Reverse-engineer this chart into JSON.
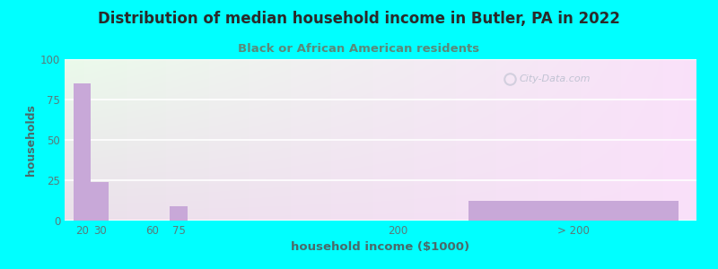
{
  "title": "Distribution of median household income in Butler, PA in 2022",
  "subtitle": "Black or African American residents",
  "xlabel": "household income ($1000)",
  "ylabel": "households",
  "background_color": "#00FFFF",
  "bar_color": "#c8a8d8",
  "title_color": "#2a2a2a",
  "subtitle_color": "#5a8a7a",
  "axis_label_color": "#4a6a6a",
  "tick_color": "#5a7a7a",
  "categories": [
    "20",
    "30",
    "60",
    "75",
    "200",
    "> 200"
  ],
  "x_positions": [
    20,
    30,
    60,
    75,
    200,
    300
  ],
  "bar_widths": [
    10,
    10,
    10,
    10,
    10,
    120
  ],
  "values": [
    85,
    24,
    0,
    9,
    0,
    12
  ],
  "xlim": [
    10,
    370
  ],
  "ylim": [
    0,
    100
  ],
  "yticks": [
    0,
    25,
    50,
    75,
    100
  ],
  "watermark": "City-Data.com"
}
